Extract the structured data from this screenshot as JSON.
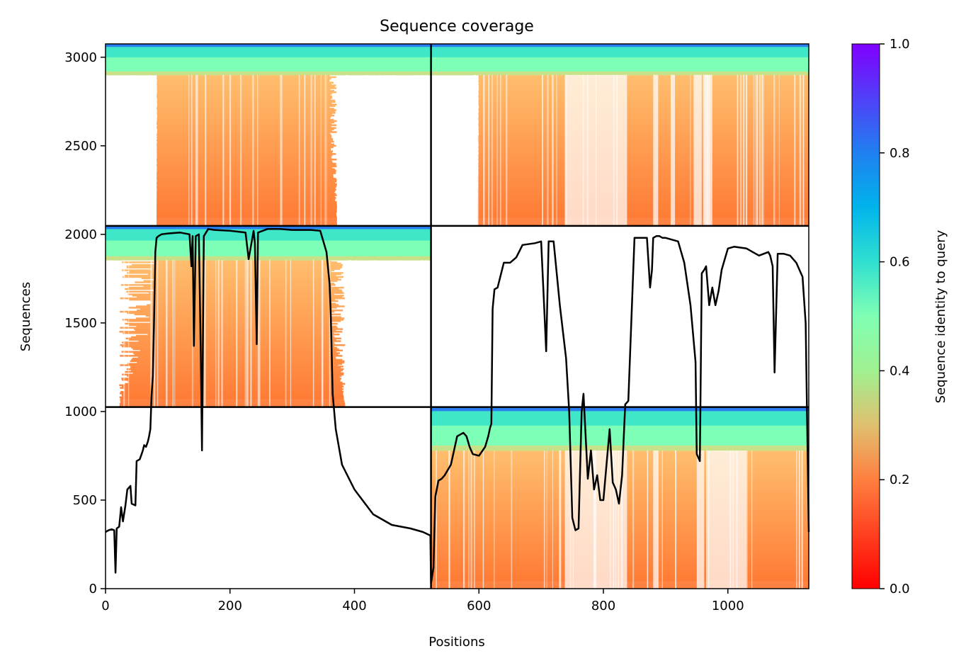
{
  "chart_data": {
    "type": "heatmap",
    "title": "Sequence coverage",
    "xlabel": "Positions",
    "ylabel": "Sequences",
    "xlim": [
      0,
      1130
    ],
    "ylim": [
      0,
      3075
    ],
    "xticks": [
      0,
      200,
      400,
      600,
      800,
      1000
    ],
    "yticks": [
      0,
      500,
      1000,
      1500,
      2000,
      2500,
      3000
    ],
    "grid": false,
    "colorbar": {
      "label": "Sequence identity to query",
      "colormap": "rainbow_r",
      "range": [
        0,
        1
      ],
      "ticks": [
        0.0,
        0.2,
        0.4,
        0.6,
        0.8,
        1.0
      ],
      "colors": [
        "#ff0000",
        "#ff7f40",
        "#80ffb4",
        "#00b4eb",
        "#8000ff"
      ]
    },
    "domain_boundaries": {
      "x": [
        523
      ],
      "y": [
        1025,
        2048
      ]
    },
    "coverage_line": {
      "color": "#000000",
      "x": [
        0,
        5,
        10,
        14,
        16,
        18,
        22,
        25,
        28,
        32,
        35,
        40,
        42,
        48,
        50,
        55,
        58,
        60,
        62,
        65,
        68,
        70,
        72,
        74,
        76,
        78,
        80,
        82,
        85,
        90,
        100,
        120,
        135,
        138,
        140,
        142,
        145,
        150,
        153,
        155,
        158,
        165,
        175,
        200,
        225,
        230,
        238,
        240,
        243,
        245,
        260,
        280,
        300,
        330,
        345,
        355,
        360,
        362,
        365,
        370,
        380,
        400,
        430,
        460,
        490,
        510,
        522,
        523,
        527,
        530,
        535,
        540,
        545,
        555,
        565,
        575,
        580,
        585,
        590,
        600,
        610,
        615,
        618,
        620,
        622,
        625,
        630,
        640,
        650,
        660,
        670,
        690,
        700,
        705,
        708,
        712,
        715,
        720,
        730,
        740,
        745,
        750,
        755,
        760,
        765,
        768,
        775,
        780,
        785,
        790,
        795,
        800,
        805,
        810,
        815,
        820,
        825,
        830,
        835,
        840,
        850,
        860,
        870,
        875,
        878,
        880,
        885,
        890,
        895,
        900,
        920,
        930,
        940,
        948,
        950,
        955,
        958,
        962,
        965,
        970,
        975,
        980,
        985,
        990,
        1000,
        1010,
        1030,
        1050,
        1065,
        1068,
        1072,
        1075,
        1080,
        1090,
        1100,
        1110,
        1120,
        1125,
        1130
      ],
      "y": [
        320,
        330,
        335,
        330,
        90,
        340,
        350,
        460,
        380,
        470,
        560,
        580,
        480,
        470,
        720,
        730,
        760,
        780,
        810,
        800,
        830,
        860,
        900,
        1090,
        1200,
        1500,
        1900,
        1980,
        1990,
        2000,
        2005,
        2010,
        2000,
        1820,
        1990,
        1370,
        1990,
        2000,
        1320,
        780,
        1990,
        2030,
        2025,
        2020,
        2010,
        1860,
        2020,
        1950,
        1380,
        2010,
        2030,
        2030,
        2025,
        2025,
        2020,
        1900,
        1720,
        1540,
        1100,
        900,
        700,
        560,
        420,
        360,
        340,
        320,
        300,
        30,
        120,
        520,
        610,
        620,
        640,
        700,
        860,
        880,
        860,
        800,
        760,
        750,
        800,
        860,
        910,
        930,
        1580,
        1690,
        1700,
        1840,
        1840,
        1870,
        1940,
        1950,
        1960,
        1580,
        1340,
        1960,
        1960,
        1960,
        1600,
        1300,
        1000,
        400,
        330,
        340,
        1000,
        1100,
        620,
        780,
        560,
        640,
        500,
        500,
        700,
        900,
        600,
        560,
        480,
        640,
        1040,
        1060,
        1980,
        1980,
        1980,
        1700,
        1800,
        1980,
        1990,
        1990,
        1980,
        1980,
        1960,
        1840,
        1600,
        1280,
        760,
        720,
        1780,
        1800,
        1820,
        1600,
        1700,
        1600,
        1680,
        1800,
        1920,
        1930,
        1920,
        1880,
        1900,
        1880,
        1820,
        1220,
        1890,
        1890,
        1880,
        1840,
        1760,
        1500,
        320
      ]
    },
    "domains": [
      {
        "x_range": [
          0,
          523
        ],
        "y_range": [
          2048,
          3075
        ],
        "high_identity_band": [
          2900,
          3075
        ],
        "column_span": [
          83,
          360
        ],
        "ragged_start": 82,
        "ragged_end": 372
      },
      {
        "x_range": [
          0,
          523
        ],
        "y_range": [
          1025,
          2048
        ],
        "high_identity_band": [
          1855,
          2048
        ],
        "column_span": [
          83,
          360
        ],
        "ragged_start": 22,
        "ragged_end": 385
      },
      {
        "x_range": [
          523,
          1130
        ],
        "y_range": [
          2048,
          3075
        ],
        "high_identity_band": [
          2900,
          3075
        ],
        "column_span": [
          600,
          1130
        ],
        "ragged_start": 598,
        "ragged_end": 1130,
        "white_gaps": [
          [
            738,
            755
          ],
          [
            755,
            838
          ],
          [
            880,
            888
          ],
          [
            908,
            915
          ],
          [
            945,
            958
          ],
          [
            960,
            975
          ]
        ]
      },
      {
        "x_range": [
          523,
          1130
        ],
        "y_range": [
          0,
          1025
        ],
        "high_identity_band": [
          780,
          1025
        ],
        "column_span": [
          523,
          1130
        ],
        "ragged_start": 523,
        "ragged_end": 1130,
        "white_gaps": [
          [
            738,
            755
          ],
          [
            755,
            838
          ],
          [
            880,
            888
          ],
          [
            950,
            962
          ],
          [
            965,
            1030
          ]
        ]
      }
    ]
  }
}
